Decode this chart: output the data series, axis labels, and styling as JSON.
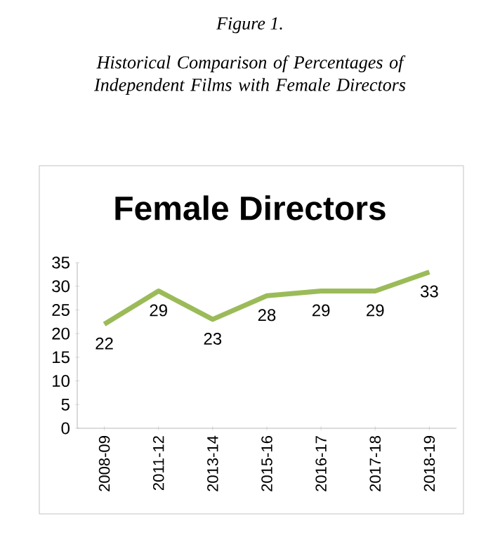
{
  "chart_data": {
    "type": "line",
    "title": "Female Directors",
    "annotations": [
      "Figure 1.",
      "Historical Comparison of Percentages of Independent Films with Female Directors"
    ],
    "categories": [
      "2008-09",
      "2011-12",
      "2013-14",
      "2015-16",
      "2016-17",
      "2017-18",
      "2018-19"
    ],
    "series": [
      {
        "color": "#9bbb59",
        "values": [
          22,
          29,
          23,
          28,
          29,
          29,
          33
        ]
      }
    ],
    "ylim": [
      0,
      35
    ],
    "yticks": [
      0,
      5,
      10,
      15,
      20,
      25,
      30,
      35
    ],
    "data_labels": true,
    "marker": "none",
    "line_style": "solid"
  }
}
